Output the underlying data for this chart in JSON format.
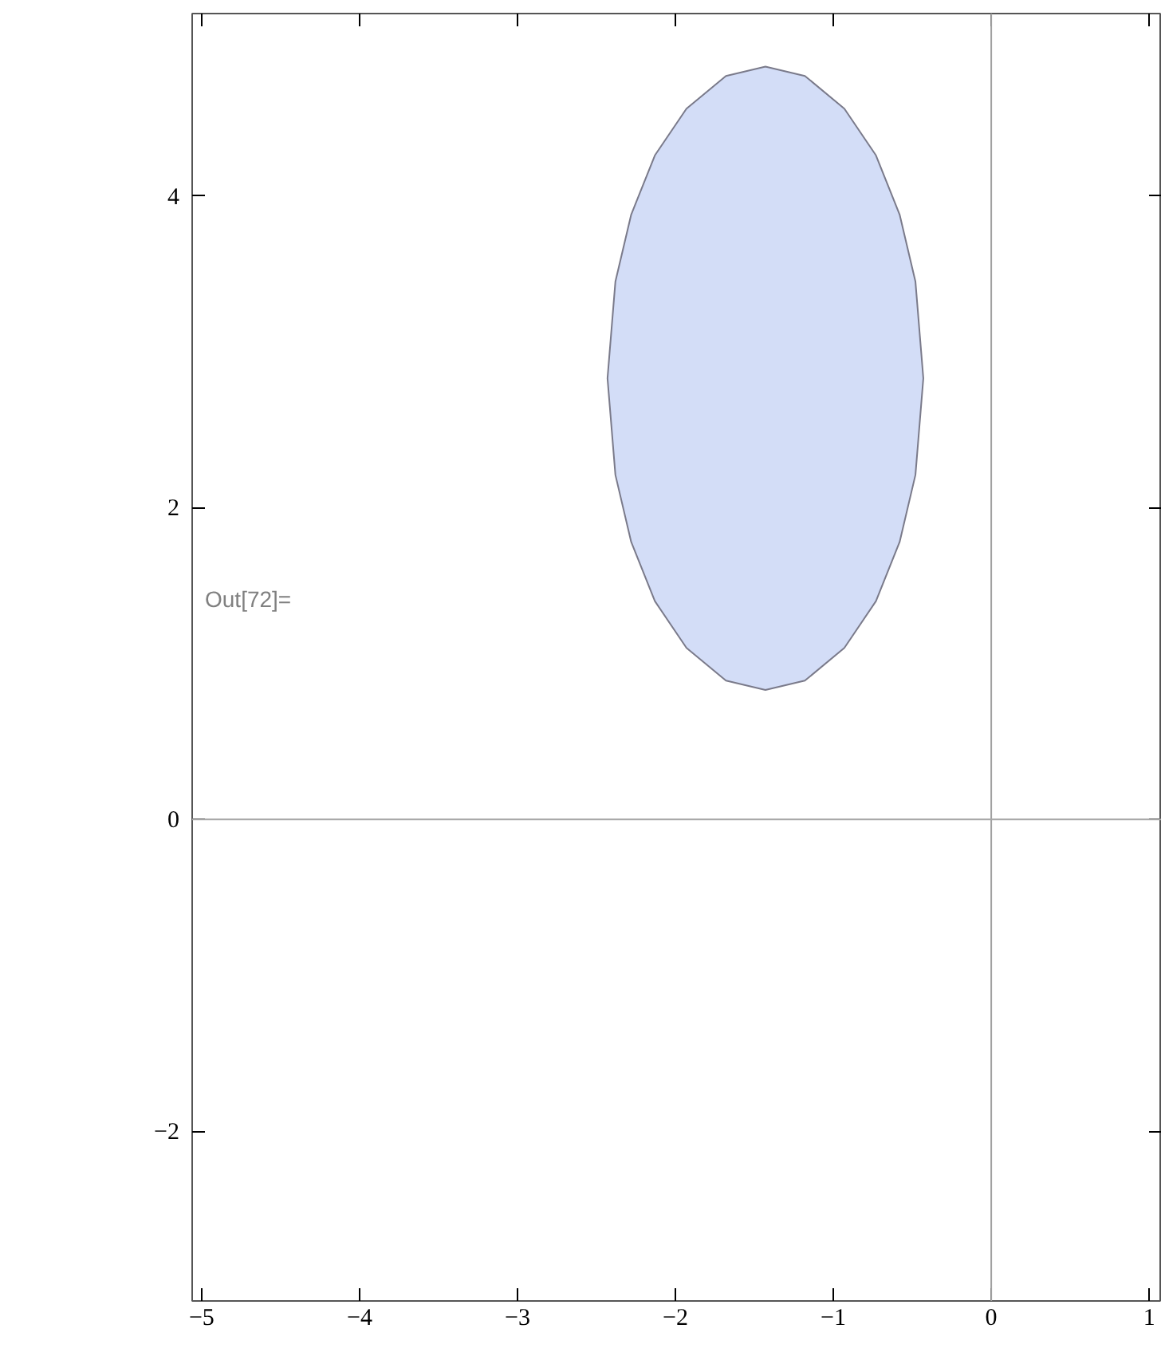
{
  "chart_data": {
    "type": "area",
    "x": [
      -2.43,
      -2.38,
      -2.28,
      -2.13,
      -1.93,
      -1.68,
      -1.43,
      -1.18,
      -0.93,
      -0.73,
      -0.58,
      -0.48,
      -0.43,
      -0.48,
      -0.58,
      -0.73,
      -0.93,
      -1.18,
      -1.43,
      -1.68,
      -1.93,
      -2.13,
      -2.28,
      -2.38
    ],
    "series": [
      {
        "color": "#d3ddf7",
        "values": [
          2.83,
          3.45,
          3.88,
          4.26,
          4.56,
          4.77,
          4.83,
          4.77,
          4.56,
          4.26,
          3.88,
          3.45,
          2.83,
          2.21,
          1.78,
          1.4,
          1.1,
          0.89,
          0.83,
          0.89,
          1.1,
          1.4,
          1.78,
          2.21
        ]
      }
    ],
    "xlim": [
      -5.06,
      1.08
    ],
    "ylim": [
      -3.09,
      5.17
    ],
    "xticks": [
      {
        "value": -5,
        "label": "−5"
      },
      {
        "value": -4,
        "label": "−4"
      },
      {
        "value": -3,
        "label": "−3"
      },
      {
        "value": -2,
        "label": "−2"
      },
      {
        "value": -1,
        "label": "−1"
      },
      0,
      1
    ],
    "yticks": [
      {
        "value": -2,
        "label": "−2"
      },
      0,
      2,
      4
    ],
    "ref_lines": [
      {
        "axis": "x",
        "value": 0,
        "color": "#a0a0a0"
      },
      {
        "axis": "y",
        "value": 0,
        "color": "#a8a8a8"
      }
    ],
    "annotations": [
      "Out[72]="
    ],
    "grid": false
  }
}
